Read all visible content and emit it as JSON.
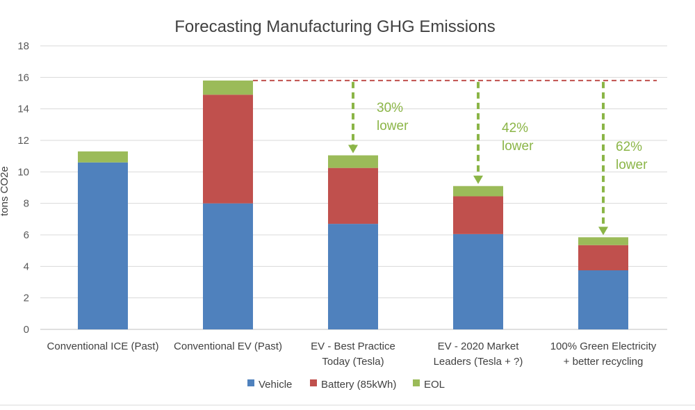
{
  "chart_data": {
    "type": "bar",
    "stacked": true,
    "title": "Forecasting Manufacturing GHG Emissions",
    "ylabel": "tons CO2e",
    "ylim": [
      0,
      18
    ],
    "yticks": [
      "0",
      "2",
      "4",
      "6",
      "8",
      "10",
      "12",
      "14",
      "16",
      "18"
    ],
    "grid": true,
    "legend_position": "bottom",
    "categories": [
      [
        "Conventional ICE (Past)"
      ],
      [
        "Conventional EV (Past)"
      ],
      [
        "EV - Best Practice",
        "Today (Tesla)"
      ],
      [
        "EV - 2020 Market",
        "Leaders (Tesla + ?)"
      ],
      [
        "100% Green Electricity",
        "+ better recycling"
      ]
    ],
    "series": [
      {
        "name": "Vehicle",
        "color": "#4F81BD",
        "values": [
          10.6,
          8.0,
          6.7,
          6.05,
          3.75
        ]
      },
      {
        "name": "Battery (85kWh)",
        "color": "#C0504D",
        "values": [
          0,
          6.9,
          3.55,
          2.4,
          1.6
        ]
      },
      {
        "name": "EOL",
        "color": "#9BBB59",
        "values": [
          0.7,
          0.9,
          0.8,
          0.65,
          0.5
        ]
      }
    ],
    "reference_line": {
      "value": 15.8,
      "color": "#C0504D",
      "style": "dashed"
    },
    "annotations": [
      {
        "category_index": 2,
        "lines": [
          "30%",
          "lower"
        ]
      },
      {
        "category_index": 3,
        "lines": [
          "42%",
          "lower"
        ]
      },
      {
        "category_index": 4,
        "lines": [
          "62%",
          "lower"
        ]
      }
    ],
    "annotation_color": "#8BB547"
  }
}
